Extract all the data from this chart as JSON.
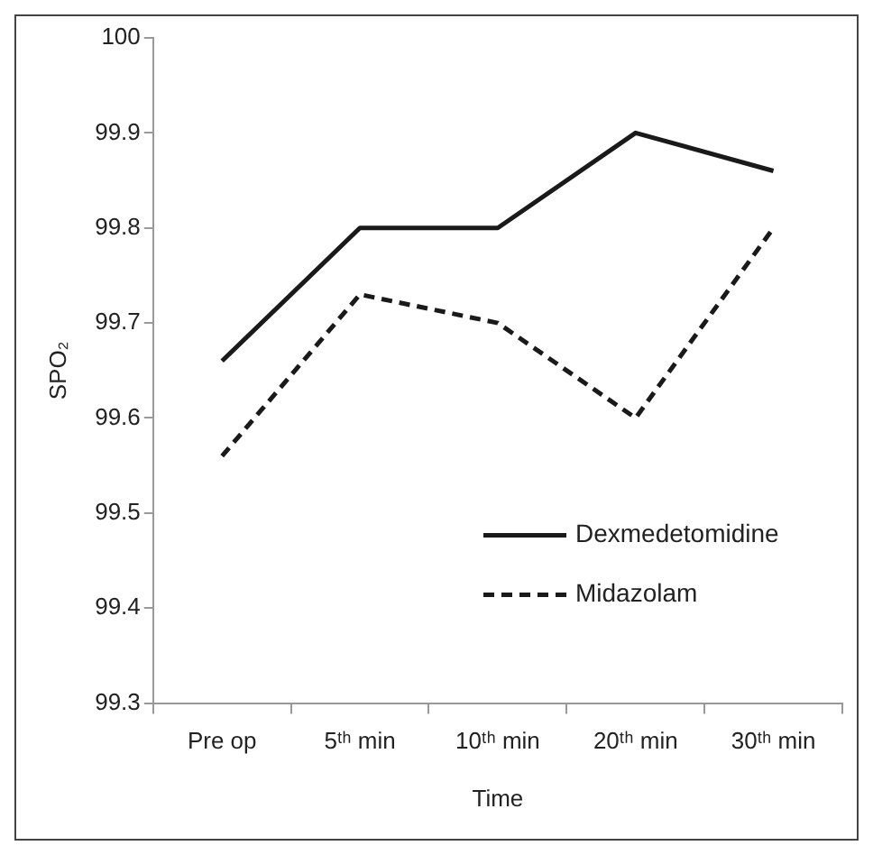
{
  "chart_data": {
    "type": "line",
    "xlabel": "Time",
    "ylabel": "SPO₂",
    "categories": [
      "Pre op",
      "5ᵗʰ min",
      "10ᵗʰ min",
      "20ᵗʰ min",
      "30ᵗʰ min"
    ],
    "series": [
      {
        "name": "Dexmedetomidine",
        "color": "#1a1a1a",
        "line_style": "solid",
        "values": [
          99.66,
          99.8,
          99.8,
          99.9,
          99.86
        ]
      },
      {
        "name": "Midazolam",
        "color": "#1a1a1a",
        "line_style": "dashed",
        "values": [
          99.56,
          99.73,
          99.7,
          99.6,
          99.8
        ]
      }
    ],
    "ylim": [
      99.3,
      100
    ],
    "yticks": [
      99.3,
      99.4,
      99.5,
      99.6,
      99.7,
      99.8,
      99.9,
      100
    ],
    "grid": false,
    "legend": "bottom right",
    "marker": "none"
  }
}
